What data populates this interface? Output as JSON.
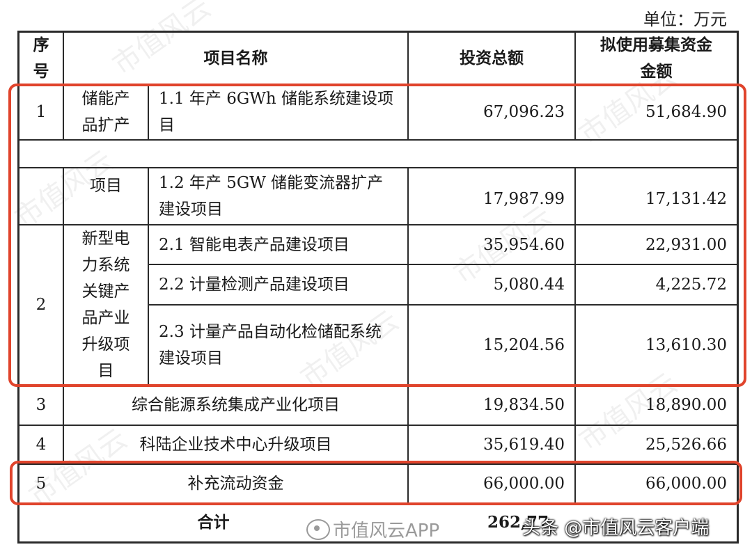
{
  "unit_label": "单位：万元",
  "headers": {
    "seq": [
      "序",
      "号"
    ],
    "name": "项目名称",
    "invest": "投资总额",
    "funds": [
      "拟使用募集资金",
      "金额"
    ]
  },
  "group1": {
    "seq": "1",
    "category_lines_a": [
      "储能产",
      "品扩产"
    ],
    "category_lines_b": [
      "项目"
    ],
    "rows": [
      {
        "name_lines": [
          "1.1 年产 6GWh 储能系统建设项",
          "目"
        ],
        "invest": "67,096.23",
        "funds": "51,684.90"
      },
      {
        "name_lines": [
          "1.2 年产 5GW 储能变流器扩产",
          "建设项目"
        ],
        "invest": "17,987.99",
        "funds": "17,131.42"
      }
    ]
  },
  "group2": {
    "seq": "2",
    "category_lines": [
      "新型电",
      "力系统",
      "关键产",
      "品产业",
      "升级项",
      "目"
    ],
    "rows": [
      {
        "name_lines": [
          "2.1 智能电表产品建设项目"
        ],
        "invest": "35,954.60",
        "funds": "22,931.00"
      },
      {
        "name_lines": [
          "2.2 计量检测产品建设项目"
        ],
        "invest": "5,080.44",
        "funds": "4,225.72"
      },
      {
        "name_lines": [
          "2.3 计量产品自动化检储配系统",
          "建设项目"
        ],
        "invest": "15,204.56",
        "funds": "13,610.30"
      }
    ]
  },
  "others": [
    {
      "seq": "3",
      "name": "综合能源系统集成产业化项目",
      "invest": "19,834.50",
      "funds": "18,890.00"
    },
    {
      "seq": "4",
      "name": "科陆企业技术中心升级项目",
      "invest": "35,619.40",
      "funds": "25,526.66"
    },
    {
      "seq": "5",
      "name": "补充流动资金",
      "invest": "66,000.00",
      "funds": "66,000.00"
    }
  ],
  "total": {
    "label": "合计",
    "invest": "262,77",
    "funds": ""
  },
  "watermarks": {
    "background": "市值风云",
    "weibo": "市值风云APP",
    "toutiao": "头条 @市值风云客户端"
  },
  "colors": {
    "highlight": "#e0442c",
    "line": "#2a2a2a"
  }
}
